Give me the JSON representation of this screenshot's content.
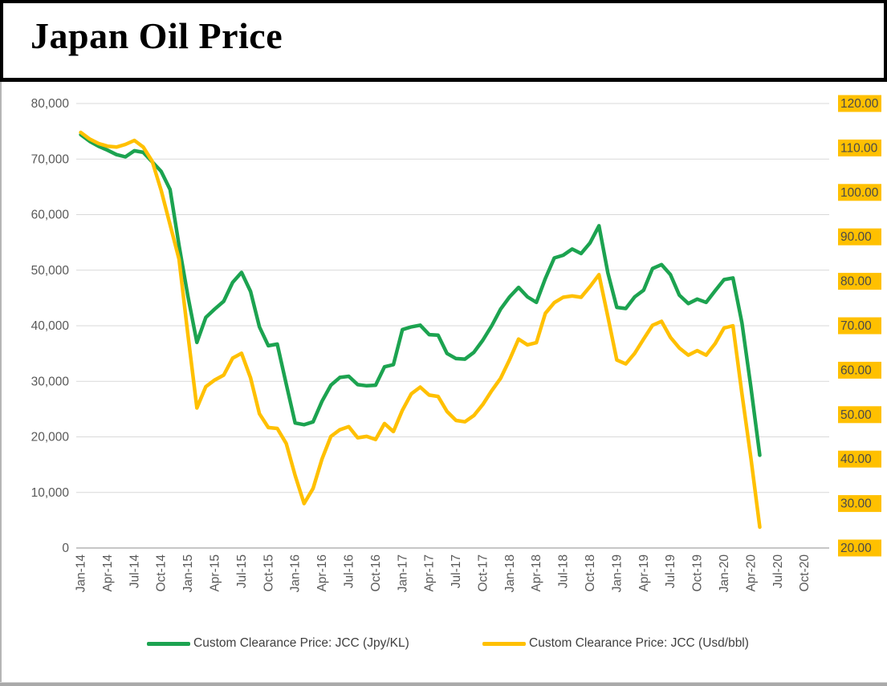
{
  "title": "Japan Oil Price",
  "chart_data": {
    "type": "line",
    "title": "Japan Oil Price",
    "x": [
      "Jan-14",
      "Feb-14",
      "Mar-14",
      "Apr-14",
      "May-14",
      "Jun-14",
      "Jul-14",
      "Aug-14",
      "Sep-14",
      "Oct-14",
      "Nov-14",
      "Dec-14",
      "Jan-15",
      "Feb-15",
      "Mar-15",
      "Apr-15",
      "May-15",
      "Jun-15",
      "Jul-15",
      "Aug-15",
      "Sep-15",
      "Oct-15",
      "Nov-15",
      "Dec-15",
      "Jan-16",
      "Feb-16",
      "Mar-16",
      "Apr-16",
      "May-16",
      "Jun-16",
      "Jul-16",
      "Aug-16",
      "Sep-16",
      "Oct-16",
      "Nov-16",
      "Dec-16",
      "Jan-17",
      "Feb-17",
      "Mar-17",
      "Apr-17",
      "May-17",
      "Jun-17",
      "Jul-17",
      "Aug-17",
      "Sep-17",
      "Oct-17",
      "Nov-17",
      "Dec-17",
      "Jan-18",
      "Feb-18",
      "Mar-18",
      "Apr-18",
      "May-18",
      "Jun-18",
      "Jul-18",
      "Aug-18",
      "Sep-18",
      "Oct-18",
      "Nov-18",
      "Dec-18",
      "Jan-19",
      "Feb-19",
      "Mar-19",
      "Apr-19",
      "May-19",
      "Jun-19",
      "Jul-19",
      "Aug-19",
      "Sep-19",
      "Oct-19",
      "Nov-19",
      "Dec-19",
      "Jan-20",
      "Feb-20",
      "Mar-20",
      "Apr-20",
      "May-20"
    ],
    "x_axis_tick_labels": [
      "Jan-14",
      "Apr-14",
      "Jul-14",
      "Oct-14",
      "Jan-15",
      "Apr-15",
      "Jul-15",
      "Oct-15",
      "Jan-16",
      "Apr-16",
      "Jul-16",
      "Oct-16",
      "Jan-17",
      "Apr-17",
      "Jul-17",
      "Oct-17",
      "Jan-18",
      "Apr-18",
      "Jul-18",
      "Oct-18",
      "Jan-19",
      "Apr-19",
      "Jul-19",
      "Oct-19",
      "Jan-20",
      "Apr-20",
      "Jul-20",
      "Oct-20"
    ],
    "x_total_categories": 84,
    "left_axis": {
      "min": 0,
      "max": 80000,
      "step": 10000,
      "tick_labels": [
        "0",
        "10,000",
        "20,000",
        "30,000",
        "40,000",
        "50,000",
        "60,000",
        "70,000",
        "80,000"
      ],
      "text_color": "#595959"
    },
    "right_axis": {
      "min": 20,
      "max": 120,
      "step": 10,
      "tick_labels": [
        "20.00",
        "30.00",
        "40.00",
        "50.00",
        "60.00",
        "70.00",
        "80.00",
        "90.00",
        "100.00",
        "110.00",
        "120.00"
      ],
      "highlight_color": "#FFC000",
      "text_color": "#4a4a4a"
    },
    "grid": true,
    "gridline_color": "#d9d9d9",
    "axis_line_color": "#b3b3b3",
    "legend_position": "bottom",
    "series": [
      {
        "name": "Custom Clearance Price: JCC (Jpy/KL)",
        "axis": "left",
        "color": "#1CA350",
        "values": [
          74400,
          73200,
          72300,
          71600,
          70800,
          70400,
          71500,
          71200,
          69500,
          67800,
          64500,
          54500,
          45300,
          37000,
          41500,
          43000,
          44400,
          47800,
          49600,
          46200,
          39800,
          36400,
          36700,
          29500,
          22500,
          22200,
          22700,
          26400,
          29300,
          30700,
          30900,
          29400,
          29200,
          29300,
          32600,
          33000,
          39300,
          39800,
          40100,
          38400,
          38300,
          35000,
          34100,
          34000,
          35200,
          37400,
          40000,
          43000,
          45200,
          46900,
          45200,
          44200,
          48500,
          52200,
          52700,
          53800,
          53000,
          54900,
          58000,
          49500,
          43300,
          43100,
          45200,
          46400,
          50300,
          51000,
          49200,
          45500,
          44000,
          44800,
          44200,
          46300,
          48300,
          48600,
          40500,
          29000,
          16700
        ]
      },
      {
        "name": "Custom Clearance Price: JCC (Usd/bbl)",
        "axis": "right",
        "color": "#FFC000",
        "values": [
          113.5,
          112.0,
          111.0,
          110.4,
          110.2,
          110.8,
          111.7,
          110.2,
          107.0,
          100.5,
          92.7,
          85.0,
          68.0,
          51.5,
          56.3,
          57.8,
          58.9,
          62.7,
          63.8,
          58.3,
          50.2,
          47.1,
          46.9,
          43.5,
          36.3,
          30.0,
          33.4,
          40.0,
          45.1,
          46.6,
          47.3,
          44.8,
          45.1,
          44.4,
          48.0,
          46.2,
          51.0,
          54.7,
          56.2,
          54.4,
          54.1,
          50.7,
          48.7,
          48.4,
          49.8,
          52.3,
          55.4,
          58.2,
          62.4,
          67.0,
          65.7,
          66.2,
          72.8,
          75.2,
          76.4,
          76.7,
          76.4,
          78.8,
          81.5,
          72.0,
          62.3,
          61.4,
          63.8,
          67.0,
          70.1,
          71.0,
          67.4,
          65.0,
          63.4,
          64.4,
          63.4,
          66.0,
          69.5,
          70.0,
          54.7,
          40.3,
          24.7
        ]
      }
    ]
  }
}
